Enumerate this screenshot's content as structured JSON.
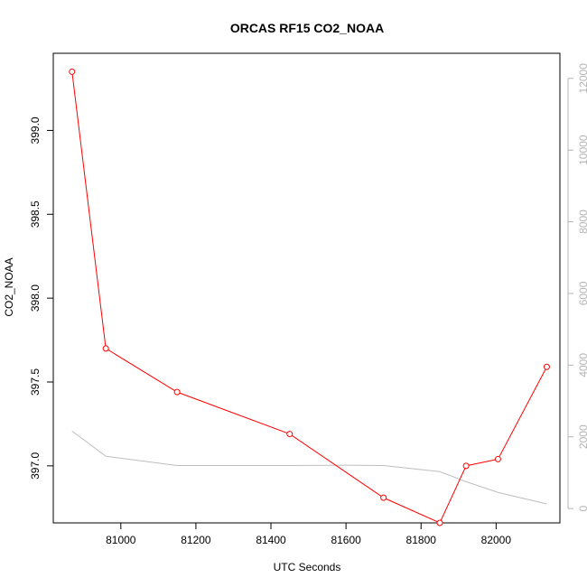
{
  "chart_data": {
    "type": "line",
    "title": "ORCAS RF15 CO2_NOAA",
    "xlabel": "UTC Seconds",
    "ylabel": "CO2_NOAA",
    "xlim": [
      80820,
      82170
    ],
    "ylim": [
      396.66,
      399.46
    ],
    "y2lim": [
      -400,
      12700
    ],
    "x_ticks": [
      81000,
      81200,
      81400,
      81600,
      81800,
      82000
    ],
    "y_ticks": [
      397.0,
      397.5,
      398.0,
      398.5,
      399.0
    ],
    "y_tick_labels": [
      "397.0",
      "397.5",
      "398.0",
      "398.5",
      "399.0"
    ],
    "y2_ticks": [
      0,
      2000,
      4000,
      6000,
      8000,
      10000,
      12000
    ],
    "colors": {
      "primary": "#ff0000",
      "secondary": "#bebebe",
      "secondary_axis": "#b4b4b4"
    },
    "series": [
      {
        "axis": "left",
        "marker": "open-circle",
        "x": [
          80870,
          80960,
          81150,
          81450,
          81700,
          81850,
          81920,
          82005,
          82135
        ],
        "values": [
          399.35,
          397.7,
          397.44,
          397.19,
          396.81,
          396.66,
          397.0,
          397.04,
          397.59
        ]
      },
      {
        "axis": "right",
        "marker": "none",
        "x": [
          80870,
          80960,
          81150,
          81450,
          81600,
          81700,
          81850,
          81920,
          82005,
          82135
        ],
        "values": [
          2160,
          1460,
          1200,
          1200,
          1210,
          1200,
          1030,
          750,
          450,
          130
        ]
      }
    ]
  }
}
